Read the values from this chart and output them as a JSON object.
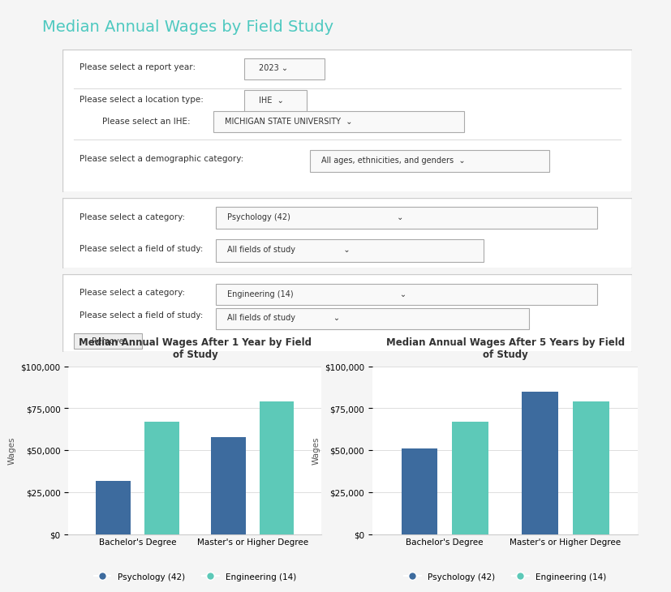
{
  "title": "Median Annual Wages by Field Study",
  "header_bg": "#3d4d5c",
  "header_text_color": "#4ec9c0",
  "page_bg": "#f5f5f5",
  "panel_bg": "#ffffff",
  "chart1": {
    "title": "Median Annual Wages After 1 Year by Field\nof Study",
    "categories": [
      "Bachelor's Degree",
      "Master's or Higher Degree"
    ],
    "series": [
      {
        "name": "Psychology (42)",
        "color": "#3d6b9e",
        "values": [
          32000,
          58000
        ]
      },
      {
        "name": "Engineering (14)",
        "color": "#5dc9b8",
        "values": [
          67000,
          79000
        ]
      }
    ],
    "ylim": [
      0,
      100000
    ],
    "yticks": [
      0,
      25000,
      50000,
      75000,
      100000
    ]
  },
  "chart2": {
    "title": "Median Annual Wages After 5 Years by Field\nof Study",
    "categories": [
      "Bachelor's Degree",
      "Master's or Higher Degree"
    ],
    "series": [
      {
        "name": "Psychology (42)",
        "color": "#3d6b9e",
        "values": [
          51000,
          85000
        ]
      },
      {
        "name": "Engineering (14)",
        "color": "#5dc9b8",
        "values": [
          67000,
          79000
        ]
      }
    ],
    "ylim": [
      0,
      100000
    ],
    "yticks": [
      0,
      25000,
      50000,
      75000,
      100000
    ]
  }
}
